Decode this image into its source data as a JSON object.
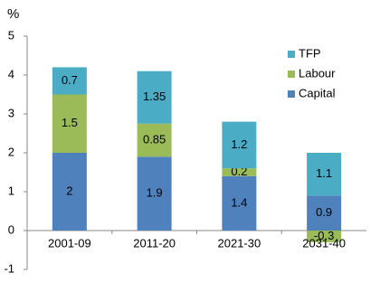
{
  "chart_data": {
    "type": "stacked_bar",
    "y_label": "%",
    "categories": [
      "2001-09",
      "2011-20",
      "2021-30",
      "2031-40"
    ],
    "series": [
      {
        "name": "Capital",
        "color": "#4f81bd",
        "values": [
          2,
          1.9,
          1.4,
          0.9
        ]
      },
      {
        "name": "Labour",
        "color": "#9bbb59",
        "values": [
          1.5,
          0.85,
          0.2,
          -0.3
        ]
      },
      {
        "name": "TFP",
        "color": "#4bacc6",
        "values": [
          0.7,
          1.35,
          1.2,
          1.1
        ]
      }
    ],
    "ylim": [
      -1,
      5
    ],
    "yticks": [
      -1,
      0,
      1,
      2,
      3,
      4,
      5
    ],
    "legend": "upper right"
  }
}
